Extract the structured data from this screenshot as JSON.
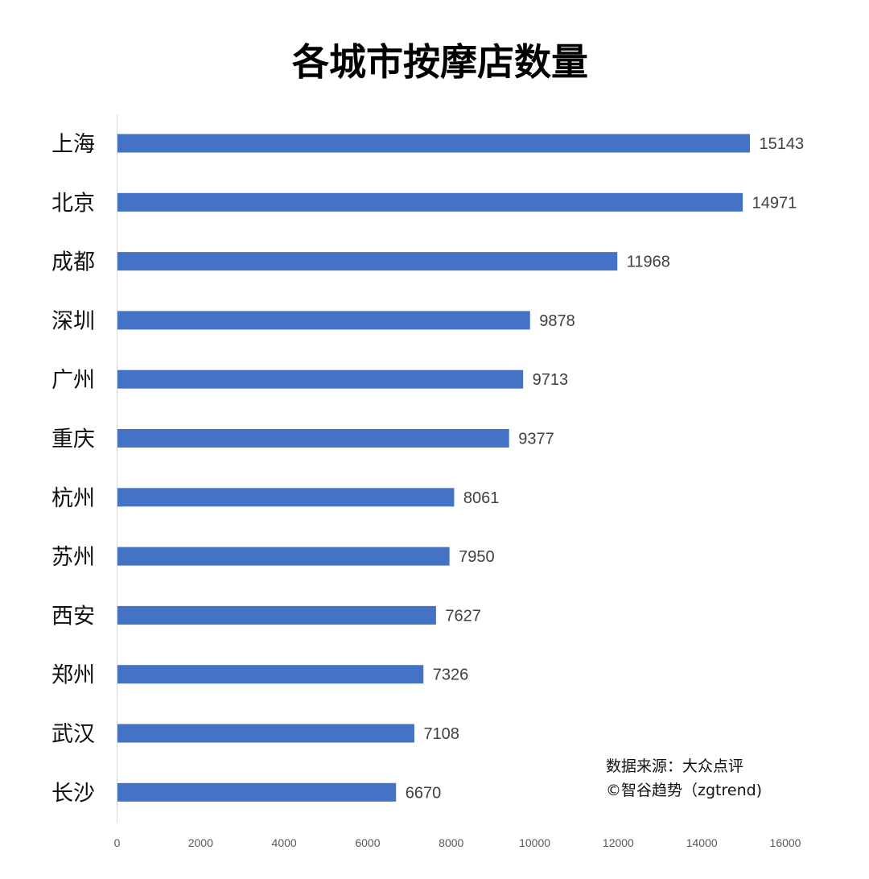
{
  "chart_data": {
    "type": "bar",
    "orientation": "horizontal",
    "title": "各城市按摩店数量",
    "xlabel": "",
    "ylabel": "",
    "categories": [
      "上海",
      "北京",
      "成都",
      "深圳",
      "广州",
      "重庆",
      "杭州",
      "苏州",
      "西安",
      "郑州",
      "武汉",
      "长沙"
    ],
    "values": [
      15143,
      14971,
      11968,
      9878,
      9713,
      9377,
      8061,
      7950,
      7627,
      7326,
      7108,
      6670
    ],
    "xlim": [
      0,
      16000
    ],
    "x_ticks": [
      "0",
      "2000",
      "4000",
      "6000",
      "8000",
      "10000",
      "12000",
      "14000",
      "16000"
    ],
    "grid": false,
    "legend": "none",
    "bar_color": "#4472C4",
    "annotations": [
      "数据来源：大众点评",
      "©智谷趋势（zgtrend)"
    ]
  }
}
